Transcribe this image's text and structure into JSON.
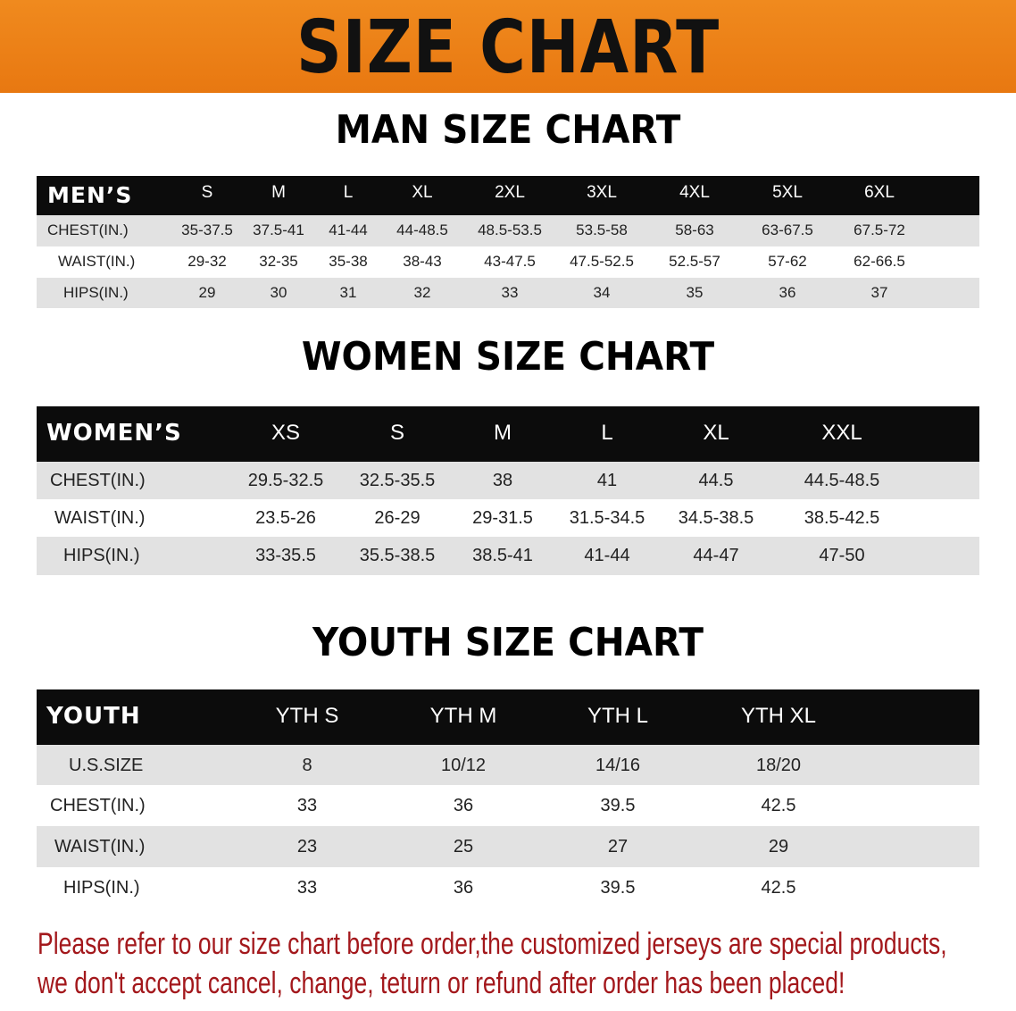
{
  "banner": {
    "title": "SIZE CHART",
    "color": "#ec8018"
  },
  "men": {
    "title": "MAN SIZE CHART",
    "header": "MEN’S",
    "columns": [
      "S",
      "M",
      "L",
      "XL",
      "2XL",
      "3XL",
      "4XL",
      "5XL",
      "6XL"
    ],
    "rows": [
      {
        "label": "CHEST(IN.)",
        "values": [
          "35-37.5",
          "37.5-41",
          "41-44",
          "44-48.5",
          "48.5-53.5",
          "53.5-58",
          "58-63",
          "63-67.5",
          "67.5-72"
        ]
      },
      {
        "label": "WAIST(IN.)",
        "values": [
          "29-32",
          "32-35",
          "35-38",
          "38-43",
          "43-47.5",
          "47.5-52.5",
          "52.5-57",
          "57-62",
          "62-66.5"
        ]
      },
      {
        "label": "HIPS(IN.)",
        "values": [
          "29",
          "30",
          "31",
          "32",
          "33",
          "34",
          "35",
          "36",
          "37"
        ]
      }
    ]
  },
  "women": {
    "title": "WOMEN SIZE CHART",
    "header": "WOMEN’S",
    "columns": [
      "XS",
      "S",
      "M",
      "L",
      "XL",
      "XXL"
    ],
    "rows": [
      {
        "label": "CHEST(IN.)",
        "values": [
          "29.5-32.5",
          "32.5-35.5",
          "38",
          "41",
          "44.5",
          "44.5-48.5"
        ]
      },
      {
        "label": "WAIST(IN.)",
        "values": [
          "23.5-26",
          "26-29",
          "29-31.5",
          "31.5-34.5",
          "34.5-38.5",
          "38.5-42.5"
        ]
      },
      {
        "label": "HIPS(IN.)",
        "values": [
          "33-35.5",
          "35.5-38.5",
          "38.5-41",
          "41-44",
          "44-47",
          "47-50"
        ]
      }
    ]
  },
  "youth": {
    "title": "YOUTH SIZE CHART",
    "header": "YOUTH",
    "columns": [
      "YTH S",
      "YTH M",
      "YTH L",
      "YTH XL"
    ],
    "rows": [
      {
        "label": "U.S.SIZE",
        "values": [
          "8",
          "10/12",
          "14/16",
          "18/20"
        ]
      },
      {
        "label": "CHEST(IN.)",
        "values": [
          "33",
          "36",
          "39.5",
          "42.5"
        ]
      },
      {
        "label": "WAIST(IN.)",
        "values": [
          "23",
          "25",
          "27",
          "29"
        ]
      },
      {
        "label": "HIPS(IN.)",
        "values": [
          "33",
          "36",
          "39.5",
          "42.5"
        ]
      }
    ]
  },
  "note": {
    "line1": "Please refer to our size chart before order,the customized jerseys are special products,",
    "line2": "we don't accept cancel, change, teturn or refund after order has been placed!",
    "color": "#a3181c"
  }
}
